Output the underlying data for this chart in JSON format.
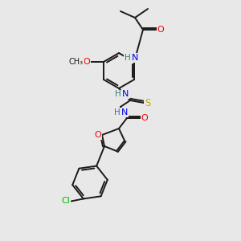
{
  "bg_color": "#e8e8e8",
  "bond_color": "#1a1a1a",
  "atom_colors": {
    "N": "#0000ee",
    "O": "#ee0000",
    "S": "#ccaa00",
    "Cl": "#00bb00",
    "H": "#2a8080",
    "C": "#1a1a1a"
  },
  "figsize": [
    3.0,
    3.0
  ],
  "dpi": 100
}
